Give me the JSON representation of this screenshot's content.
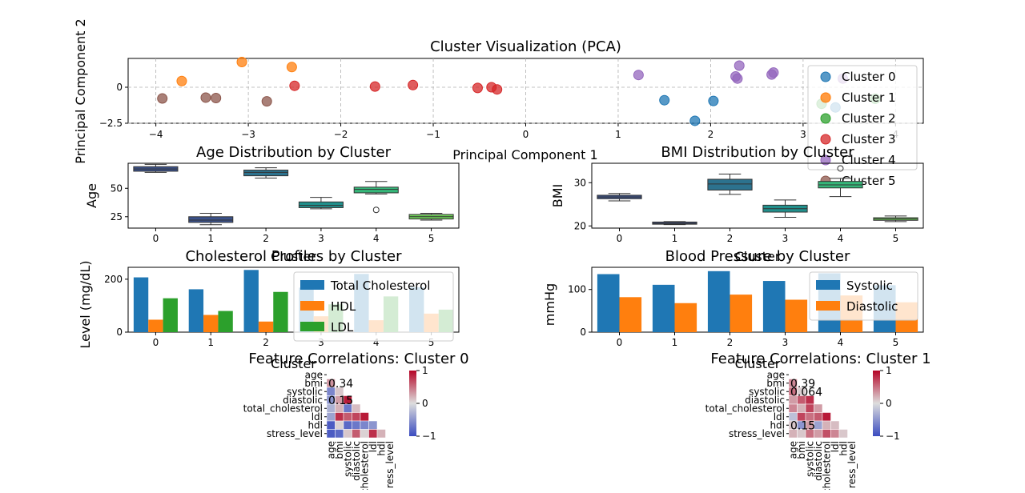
{
  "chart_data": [
    {
      "type": "scatter",
      "title": "Cluster Visualization (PCA)",
      "xlabel": "Principal Component 1",
      "ylabel": "Principal Component 2",
      "xlim": [
        -4.3,
        4.3
      ],
      "ylim": [
        -2.5,
        2.0
      ],
      "xticks": [
        -4,
        -3,
        -2,
        -1,
        0,
        1,
        2,
        3,
        4
      ],
      "yticks": [
        -2.5,
        0.0
      ],
      "grid": true,
      "legend": "top-right",
      "series": [
        {
          "name": "Cluster 0",
          "color": "#1f77b4",
          "points": [
            [
              1.5,
              -0.9
            ],
            [
              2.03,
              -0.95
            ],
            [
              1.83,
              -2.33
            ],
            [
              3.35,
              -1.4
            ]
          ]
        },
        {
          "name": "Cluster 1",
          "color": "#ff7f0e",
          "points": [
            [
              -3.07,
              1.75
            ],
            [
              -2.53,
              1.4
            ],
            [
              -3.72,
              0.43
            ],
            [
              3.25,
              -0.7
            ]
          ]
        },
        {
          "name": "Cluster 2",
          "color": "#2ca02c",
          "points": [
            [
              3.2,
              -1.15
            ],
            [
              3.78,
              -0.8
            ]
          ]
        },
        {
          "name": "Cluster 3",
          "color": "#d62728",
          "points": [
            [
              -2.5,
              0.1
            ],
            [
              -1.63,
              0.05
            ],
            [
              -1.22,
              0.15
            ],
            [
              -0.52,
              -0.05
            ],
            [
              -0.37,
              0.0
            ],
            [
              -0.31,
              -0.15
            ]
          ]
        },
        {
          "name": "Cluster 4",
          "color": "#9467bd",
          "points": [
            [
              1.22,
              0.85
            ],
            [
              2.31,
              1.5
            ],
            [
              2.27,
              0.75
            ],
            [
              2.29,
              0.6
            ],
            [
              2.68,
              1.02
            ],
            [
              2.66,
              0.88
            ],
            [
              3.43,
              0.6
            ]
          ]
        },
        {
          "name": "Cluster 5",
          "color": "#8c564b",
          "points": [
            [
              -3.93,
              -0.78
            ],
            [
              -3.46,
              -0.72
            ],
            [
              -3.35,
              -0.75
            ],
            [
              -2.8,
              -0.98
            ]
          ]
        }
      ]
    },
    {
      "type": "box",
      "title": "Age Distribution by Cluster",
      "xlabel": "Cluster",
      "ylabel": "Age",
      "categories": [
        "0",
        "1",
        "2",
        "3",
        "4",
        "5"
      ],
      "ylim": [
        15,
        72
      ],
      "yticks": [
        25,
        50
      ],
      "boxes": [
        {
          "min": 64,
          "q1": 65,
          "median": 67,
          "q3": 69,
          "max": 71,
          "color": "#3b528b",
          "outliers": []
        },
        {
          "min": 18,
          "q1": 20,
          "median": 22,
          "q3": 25,
          "max": 28,
          "color": "#3b528b",
          "outliers": []
        },
        {
          "min": 59,
          "q1": 61,
          "median": 64,
          "q3": 66,
          "max": 68,
          "color": "#2c728e",
          "outliers": []
        },
        {
          "min": 32,
          "q1": 33,
          "median": 35,
          "q3": 38,
          "max": 42,
          "color": "#21908c",
          "outliers": []
        },
        {
          "min": 45,
          "q1": 46,
          "median": 49,
          "q3": 51,
          "max": 56,
          "color": "#35b779",
          "outliers": [
            31
          ]
        },
        {
          "min": 22,
          "q1": 23,
          "median": 25,
          "q3": 27,
          "max": 28,
          "color": "#6ece58",
          "outliers": []
        }
      ]
    },
    {
      "type": "box",
      "title": "BMI Distribution by Cluster",
      "xlabel": "Cluster",
      "ylabel": "BMI",
      "categories": [
        "0",
        "1",
        "2",
        "3",
        "4",
        "5"
      ],
      "ylim": [
        19.5,
        34.5
      ],
      "yticks": [
        20,
        30
      ],
      "boxes": [
        {
          "min": 25.8,
          "q1": 26.3,
          "median": 26.7,
          "q3": 27.1,
          "max": 27.5,
          "color": "#3b528b",
          "outliers": []
        },
        {
          "min": 20.3,
          "q1": 20.4,
          "median": 20.6,
          "q3": 20.9,
          "max": 21.0,
          "color": "#3b528b",
          "outliers": []
        },
        {
          "min": 27.3,
          "q1": 28.3,
          "median": 29.7,
          "q3": 30.8,
          "max": 32.0,
          "color": "#2c728e",
          "outliers": []
        },
        {
          "min": 22.0,
          "q1": 23.2,
          "median": 24.0,
          "q3": 24.8,
          "max": 26.0,
          "color": "#21908c",
          "outliers": []
        },
        {
          "min": 26.8,
          "q1": 28.8,
          "median": 29.5,
          "q3": 30.3,
          "max": 31.0,
          "color": "#35b779",
          "outliers": [
            33.3
          ]
        },
        {
          "min": 21.0,
          "q1": 21.3,
          "median": 21.6,
          "q3": 21.9,
          "max": 22.3,
          "color": "#6ece58",
          "outliers": []
        }
      ]
    },
    {
      "type": "bar",
      "title": "Cholesterol Profiles by Cluster",
      "xlabel": "Cluster",
      "ylabel": "Level (mg/dL)",
      "categories": [
        "0",
        "1",
        "2",
        "3",
        "4",
        "5"
      ],
      "ylim": [
        0,
        245
      ],
      "yticks": [
        0,
        200
      ],
      "legend": "top-right",
      "series": [
        {
          "name": "Total Cholesterol",
          "color": "#1f77b4",
          "values": [
            207,
            162,
            235,
            168,
            220,
            170
          ]
        },
        {
          "name": "HDL",
          "color": "#ff7f0e",
          "values": [
            47,
            65,
            40,
            60,
            45,
            70
          ]
        },
        {
          "name": "LDL",
          "color": "#2ca02c",
          "values": [
            128,
            80,
            152,
            105,
            135,
            85
          ]
        }
      ]
    },
    {
      "type": "bar",
      "title": "Blood Pressure by Cluster",
      "xlabel": "Cluster",
      "ylabel": "mmHg",
      "categories": [
        "0",
        "1",
        "2",
        "3",
        "4",
        "5"
      ],
      "ylim": [
        0,
        152
      ],
      "yticks": [
        0,
        100
      ],
      "legend": "top-right",
      "series": [
        {
          "name": "Systolic",
          "color": "#1f77b4",
          "values": [
            136,
            111,
            143,
            120,
            138,
            110
          ]
        },
        {
          "name": "Diastolic",
          "color": "#ff7f0e",
          "values": [
            82,
            68,
            88,
            76,
            86,
            70
          ]
        }
      ]
    },
    {
      "type": "heatmap",
      "title": "Feature Correlations: Cluster 0",
      "labels": [
        "age",
        "bmi",
        "systolic",
        "diastolic",
        "total_cholesterol",
        "ldl",
        "hdl",
        "stress_level"
      ],
      "tick_labels": [
        "age",
        "bmi",
        "systolic",
        "diastolic",
        "cholesterol",
        "ldl",
        "hdl",
        "ress_level"
      ],
      "colorbar_ticks": [
        1,
        0,
        -1
      ],
      "values": [
        [
          null,
          null,
          null,
          null,
          null,
          null,
          null,
          null
        ],
        [
          0.34,
          null,
          null,
          null,
          null,
          null,
          null,
          null
        ],
        [
          -0.6,
          0.1,
          null,
          null,
          null,
          null,
          null,
          null
        ],
        [
          -0.5,
          0.3,
          0.9,
          null,
          null,
          null,
          null,
          null
        ],
        [
          -0.3,
          0.2,
          -0.7,
          0.15,
          null,
          null,
          null,
          null
        ],
        [
          -0.4,
          0.8,
          0.6,
          0.7,
          0.9,
          null,
          null,
          null
        ],
        [
          -0.9,
          0.05,
          -0.8,
          -0.7,
          -0.6,
          -0.5,
          null,
          null
        ],
        [
          -0.9,
          -0.8,
          0.1,
          0.6,
          0.05,
          0.8,
          0.2,
          null
        ]
      ],
      "annotations": [
        "",
        "0.34",
        "",
        "0.15",
        "",
        "",
        "",
        ""
      ]
    },
    {
      "type": "heatmap",
      "title": "Feature Correlations: Cluster 1",
      "labels": [
        "age",
        "bmi",
        "systolic",
        "diastolic",
        "total_cholesterol",
        "ldl",
        "hdl",
        "stress_level"
      ],
      "tick_labels": [
        "age",
        "bmi",
        "systolic",
        "diastolic",
        "cholesterol",
        "ldl",
        "hdl",
        "ress_level"
      ],
      "colorbar_ticks": [
        1,
        0,
        -1
      ],
      "values": [
        [
          null,
          null,
          null,
          null,
          null,
          null,
          null,
          null
        ],
        [
          0.39,
          null,
          null,
          null,
          null,
          null,
          null,
          null
        ],
        [
          0.5,
          0.064,
          null,
          null,
          null,
          null,
          null,
          null
        ],
        [
          0.3,
          0.6,
          0.8,
          null,
          null,
          null,
          null,
          null
        ],
        [
          0.4,
          0.2,
          0.7,
          0.3,
          null,
          null,
          null,
          null
        ],
        [
          -0.2,
          0.7,
          0.5,
          0.6,
          0.9,
          null,
          null,
          null
        ],
        [
          0.1,
          -0.5,
          0.3,
          -0.4,
          0.2,
          0.15,
          null,
          null
        ],
        [
          0.2,
          0.1,
          0.5,
          0.3,
          0.65,
          0.4,
          0.1,
          null
        ]
      ],
      "annotations": [
        "",
        "0.39",
        "0.064",
        "",
        "",
        "",
        "0.15",
        ""
      ]
    }
  ]
}
